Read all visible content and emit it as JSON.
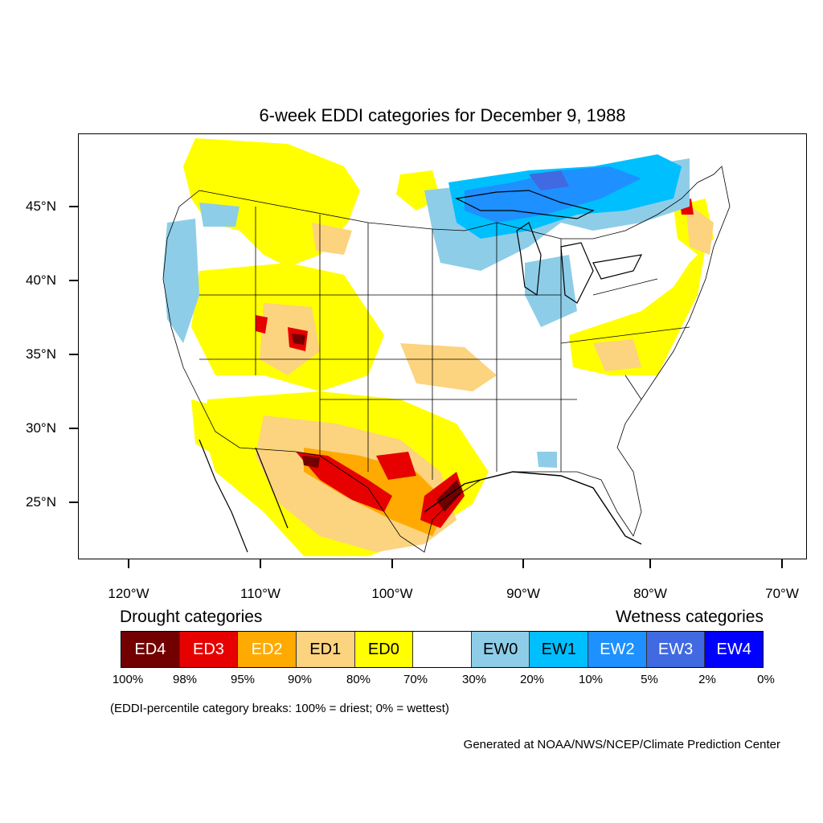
{
  "title": "6-week EDDI categories for December 9, 1988",
  "lat_labels": [
    "45°N",
    "40°N",
    "35°N",
    "30°N",
    "25°N"
  ],
  "lon_labels": [
    "120°W",
    "110°W",
    "100°W",
    "90°W",
    "80°W",
    "70°W"
  ],
  "legend": {
    "drought_heading": "Drought categories",
    "wetness_heading": "Wetness categories",
    "categories": [
      {
        "label": "ED4",
        "color": "#730000",
        "text_color": "#ffffff"
      },
      {
        "label": "ED3",
        "color": "#e60000",
        "text_color": "#ffffff"
      },
      {
        "label": "ED2",
        "color": "#ffaa00",
        "text_color": "#ffffff"
      },
      {
        "label": "ED1",
        "color": "#fcd37f",
        "text_color": "#000000"
      },
      {
        "label": "ED0",
        "color": "#ffff00",
        "text_color": "#000000"
      },
      {
        "label": "",
        "color": "#ffffff",
        "text_color": "#000000"
      },
      {
        "label": "EW0",
        "color": "#8ecde8",
        "text_color": "#000000"
      },
      {
        "label": "EW1",
        "color": "#00bfff",
        "text_color": "#000000"
      },
      {
        "label": "EW2",
        "color": "#1e90ff",
        "text_color": "#ffffff"
      },
      {
        "label": "EW3",
        "color": "#4169e1",
        "text_color": "#ffffff"
      },
      {
        "label": "EW4",
        "color": "#0000ff",
        "text_color": "#ffffff"
      }
    ],
    "breaks": [
      "100%",
      "98%",
      "95%",
      "90%",
      "80%",
      "70%",
      "30%",
      "20%",
      "10%",
      "5%",
      "2%",
      "0%"
    ]
  },
  "note": "(EDDI-percentile category breaks: 100% = driest; 0% = wettest)",
  "credit": "Generated at NOAA/NWS/NCEP/Climate Prediction Center"
}
